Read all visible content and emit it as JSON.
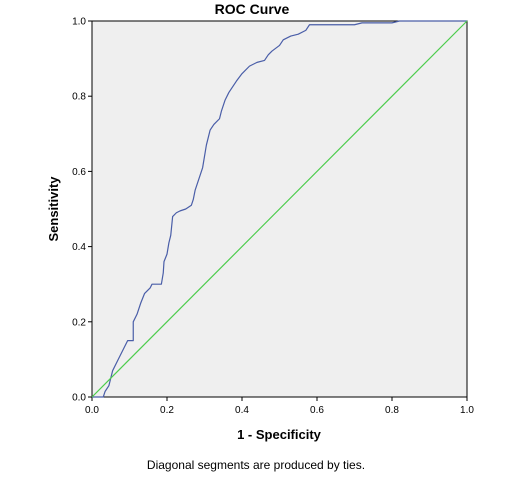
{
  "chart_data": {
    "type": "line",
    "title": "ROC Curve",
    "xlabel": "1 - Specificity",
    "ylabel": "Sensitivity",
    "xlim": [
      0,
      1
    ],
    "ylim": [
      0,
      1
    ],
    "xticks": [
      0.0,
      0.2,
      0.4,
      0.6,
      0.8,
      1.0
    ],
    "yticks": [
      0.0,
      0.2,
      0.4,
      0.6,
      0.8,
      1.0
    ],
    "tick_labels": [
      "0.0",
      "0.2",
      "0.4",
      "0.6",
      "0.8",
      "1.0"
    ],
    "grid": false,
    "plot_background": "#efefef",
    "series": [
      {
        "color": "#4a5ea8",
        "points": [
          [
            0.0,
            0.0
          ],
          [
            0.03,
            0.0
          ],
          [
            0.035,
            0.015
          ],
          [
            0.045,
            0.03
          ],
          [
            0.055,
            0.07
          ],
          [
            0.07,
            0.1
          ],
          [
            0.085,
            0.13
          ],
          [
            0.095,
            0.15
          ],
          [
            0.11,
            0.15
          ],
          [
            0.11,
            0.2
          ],
          [
            0.12,
            0.22
          ],
          [
            0.13,
            0.25
          ],
          [
            0.14,
            0.275
          ],
          [
            0.155,
            0.29
          ],
          [
            0.16,
            0.3
          ],
          [
            0.185,
            0.3
          ],
          [
            0.19,
            0.33
          ],
          [
            0.192,
            0.36
          ],
          [
            0.2,
            0.38
          ],
          [
            0.205,
            0.41
          ],
          [
            0.21,
            0.43
          ],
          [
            0.215,
            0.48
          ],
          [
            0.225,
            0.49
          ],
          [
            0.235,
            0.495
          ],
          [
            0.25,
            0.5
          ],
          [
            0.265,
            0.51
          ],
          [
            0.27,
            0.525
          ],
          [
            0.275,
            0.55
          ],
          [
            0.285,
            0.58
          ],
          [
            0.295,
            0.61
          ],
          [
            0.3,
            0.64
          ],
          [
            0.305,
            0.67
          ],
          [
            0.31,
            0.69
          ],
          [
            0.315,
            0.71
          ],
          [
            0.325,
            0.725
          ],
          [
            0.34,
            0.74
          ],
          [
            0.345,
            0.76
          ],
          [
            0.355,
            0.79
          ],
          [
            0.365,
            0.81
          ],
          [
            0.375,
            0.825
          ],
          [
            0.385,
            0.84
          ],
          [
            0.4,
            0.86
          ],
          [
            0.42,
            0.88
          ],
          [
            0.44,
            0.89
          ],
          [
            0.46,
            0.895
          ],
          [
            0.47,
            0.91
          ],
          [
            0.48,
            0.92
          ],
          [
            0.5,
            0.935
          ],
          [
            0.51,
            0.95
          ],
          [
            0.53,
            0.96
          ],
          [
            0.55,
            0.965
          ],
          [
            0.57,
            0.975
          ],
          [
            0.58,
            0.99
          ],
          [
            0.6,
            0.99
          ],
          [
            0.7,
            0.99
          ],
          [
            0.72,
            0.995
          ],
          [
            0.8,
            0.995
          ],
          [
            0.82,
            1.0
          ],
          [
            1.0,
            1.0
          ]
        ]
      },
      {
        "color": "#4ccc4c",
        "points": [
          [
            0.0,
            0.0
          ],
          [
            1.0,
            1.0
          ]
        ]
      }
    ],
    "footnote": "Diagonal segments are produced by ties."
  }
}
